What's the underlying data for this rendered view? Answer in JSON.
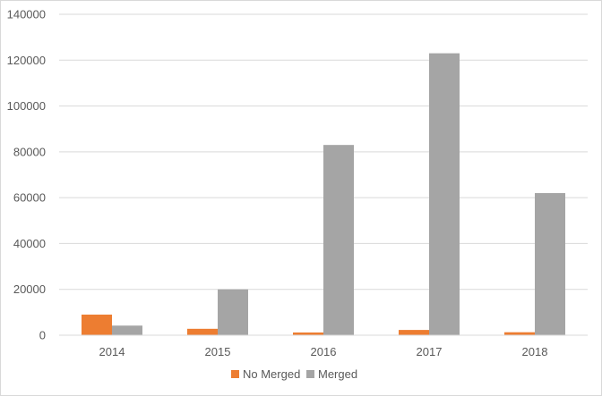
{
  "chart_data": {
    "type": "bar",
    "title": "",
    "xlabel": "",
    "ylabel": "",
    "categories": [
      "2014",
      "2015",
      "2016",
      "2017",
      "2018"
    ],
    "series": [
      {
        "name": "No Merged",
        "color": "#ed7d31",
        "values": [
          9000,
          2800,
          1200,
          2300,
          1300
        ]
      },
      {
        "name": "Merged",
        "color": "#a5a5a5",
        "values": [
          4200,
          20000,
          83000,
          123000,
          62000
        ]
      }
    ],
    "ylim": [
      0,
      140000
    ],
    "yticks": [
      "0",
      "20000",
      "40000",
      "60000",
      "80000",
      "100000",
      "120000",
      "140000"
    ],
    "grid": true,
    "legend_position": "bottom"
  }
}
